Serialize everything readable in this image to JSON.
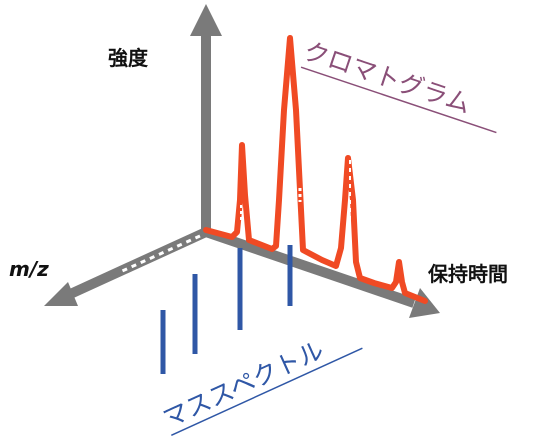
{
  "labels": {
    "intensity": "強度",
    "mz": "m/z",
    "retention_time": "保持時間",
    "chromatogram": "クロマトグラム",
    "mass_spectrum": "マススペクトル"
  },
  "colors": {
    "axis": "#7a7a7a",
    "chromatogram": "#f04a24",
    "chromatogram_label": "#8a4f78",
    "mass_spectrum": "#2f57a6",
    "background": "#ffffff"
  }
}
